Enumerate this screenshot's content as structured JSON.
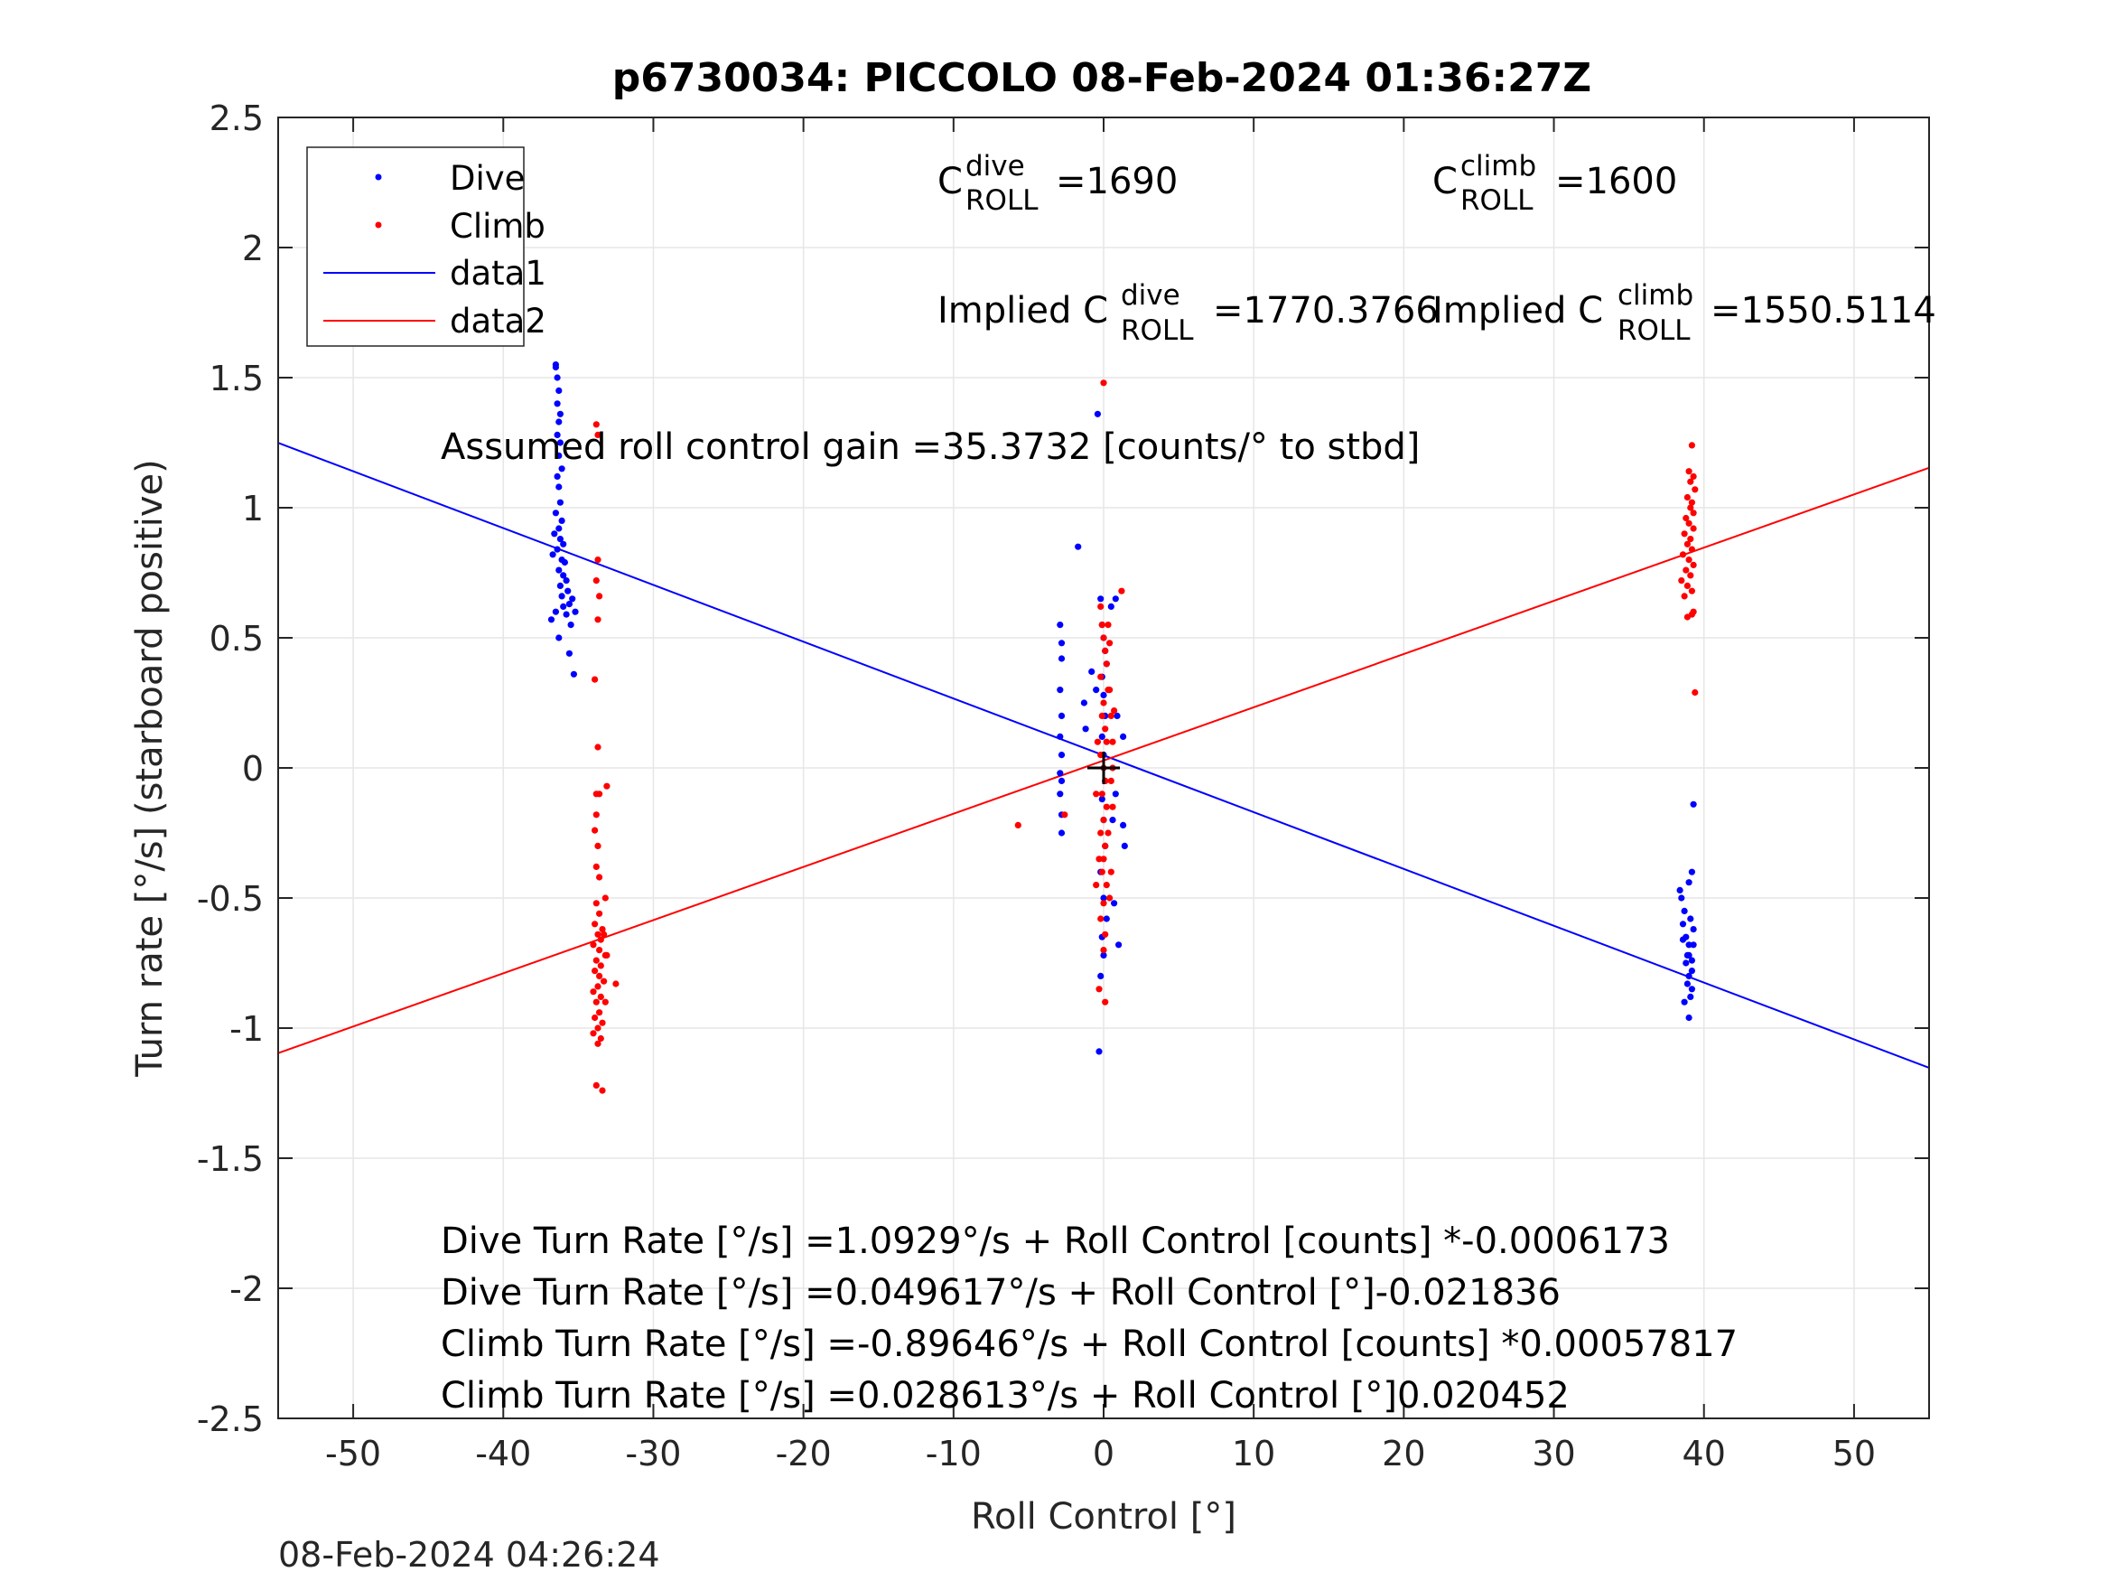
{
  "chart_data": {
    "type": "scatter",
    "title": "p6730034: PICCOLO 08-Feb-2024 01:36:27Z",
    "xlabel": "Roll Control [°]",
    "ylabel": "Turn rate [°/s] (starboard positive)",
    "xlim": [
      -55,
      55
    ],
    "ylim": [
      -2.5,
      2.5
    ],
    "xticks": [
      -50,
      -40,
      -30,
      -20,
      -10,
      0,
      10,
      20,
      30,
      40,
      50
    ],
    "yticks": [
      -2.5,
      -2,
      -1.5,
      -1,
      -0.5,
      0,
      0.5,
      1,
      1.5,
      2,
      2.5
    ],
    "grid": true,
    "legend_position": "top-left",
    "legend": [
      "Dive",
      "Climb",
      "data1",
      "data2"
    ],
    "colors": {
      "dive": "#0000ff",
      "climb": "#ff0000",
      "axes": "#262626",
      "grid": "#e6e6e6",
      "crosshair": "#000000"
    },
    "series": [
      {
        "name": "Dive",
        "kind": "points",
        "color": "#0000ff",
        "points": [
          [
            -36.5,
            1.55
          ],
          [
            -36.5,
            1.54
          ],
          [
            -36.4,
            1.5
          ],
          [
            -36.3,
            1.45
          ],
          [
            -36.4,
            1.4
          ],
          [
            -36.2,
            1.36
          ],
          [
            -36.3,
            1.33
          ],
          [
            -36.4,
            1.28
          ],
          [
            -36.2,
            1.25
          ],
          [
            -36.3,
            1.2
          ],
          [
            -36.1,
            1.15
          ],
          [
            -36.4,
            1.12
          ],
          [
            -36.3,
            1.08
          ],
          [
            -36.2,
            1.02
          ],
          [
            -36.5,
            0.98
          ],
          [
            -36.1,
            0.95
          ],
          [
            -36.3,
            0.92
          ],
          [
            -36.6,
            0.9
          ],
          [
            -36.2,
            0.88
          ],
          [
            -36.0,
            0.86
          ],
          [
            -36.4,
            0.84
          ],
          [
            -36.7,
            0.82
          ],
          [
            -36.1,
            0.8
          ],
          [
            -35.9,
            0.79
          ],
          [
            -36.3,
            0.76
          ],
          [
            -36.0,
            0.74
          ],
          [
            -35.8,
            0.72
          ],
          [
            -36.2,
            0.7
          ],
          [
            -35.7,
            0.68
          ],
          [
            -36.1,
            0.66
          ],
          [
            -35.4,
            0.65
          ],
          [
            -35.6,
            0.63
          ],
          [
            -36.0,
            0.62
          ],
          [
            -36.5,
            0.6
          ],
          [
            -35.2,
            0.6
          ],
          [
            -35.8,
            0.59
          ],
          [
            -36.8,
            0.57
          ],
          [
            -35.5,
            0.55
          ],
          [
            -36.3,
            0.5
          ],
          [
            -35.6,
            0.44
          ],
          [
            -35.3,
            0.36
          ],
          [
            -2.9,
            0.55
          ],
          [
            -2.8,
            0.48
          ],
          [
            -2.8,
            0.42
          ],
          [
            -2.9,
            0.3
          ],
          [
            -2.8,
            0.2
          ],
          [
            -2.9,
            0.12
          ],
          [
            -2.8,
            0.05
          ],
          [
            -2.9,
            -0.02
          ],
          [
            -2.8,
            -0.05
          ],
          [
            -2.9,
            -0.1
          ],
          [
            -2.8,
            -0.18
          ],
          [
            -2.8,
            -0.25
          ],
          [
            -1.7,
            0.85
          ],
          [
            -1.3,
            0.25
          ],
          [
            -1.2,
            0.15
          ],
          [
            -0.8,
            0.37
          ],
          [
            -0.5,
            0.3
          ],
          [
            -0.4,
            1.36
          ],
          [
            -0.2,
            0.65
          ],
          [
            -0.1,
            0.55
          ],
          [
            0.0,
            0.5
          ],
          [
            0.1,
            0.45
          ],
          [
            0.2,
            0.4
          ],
          [
            -0.1,
            0.35
          ],
          [
            0.0,
            0.28
          ],
          [
            0.1,
            0.2
          ],
          [
            -0.1,
            0.12
          ],
          [
            0.0,
            0.05
          ],
          [
            0.1,
            -0.05
          ],
          [
            -0.1,
            -0.12
          ],
          [
            0.0,
            -0.2
          ],
          [
            0.1,
            -0.3
          ],
          [
            -0.2,
            -0.4
          ],
          [
            0.0,
            -0.5
          ],
          [
            0.2,
            -0.58
          ],
          [
            -0.1,
            -0.65
          ],
          [
            0.0,
            -0.72
          ],
          [
            -0.2,
            -0.8
          ],
          [
            -0.3,
            -1.09
          ],
          [
            0.8,
            0.65
          ],
          [
            0.8,
            -0.1
          ],
          [
            1.0,
            -0.68
          ],
          [
            0.7,
            -0.52
          ],
          [
            0.5,
            0.62
          ],
          [
            1.3,
            0.12
          ],
          [
            1.4,
            -0.3
          ],
          [
            1.3,
            -0.22
          ],
          [
            0.9,
            0.2
          ],
          [
            0.6,
            -0.2
          ],
          [
            38.4,
            -0.47
          ],
          [
            38.5,
            -0.5
          ],
          [
            38.7,
            -0.55
          ],
          [
            38.6,
            -0.6
          ],
          [
            39.2,
            -0.4
          ],
          [
            39.0,
            -0.44
          ],
          [
            39.1,
            -0.58
          ],
          [
            38.8,
            -0.65
          ],
          [
            39.3,
            -0.68
          ],
          [
            39.0,
            -0.72
          ],
          [
            38.8,
            -0.75
          ],
          [
            39.2,
            -0.78
          ],
          [
            39.0,
            -0.8
          ],
          [
            38.9,
            -0.83
          ],
          [
            39.2,
            -0.85
          ],
          [
            39.1,
            -0.88
          ],
          [
            38.9,
            -0.72
          ],
          [
            39.3,
            -0.62
          ],
          [
            38.7,
            -0.9
          ],
          [
            39.0,
            -0.96
          ],
          [
            39.3,
            -0.14
          ],
          [
            38.6,
            -0.66
          ],
          [
            39.2,
            -0.74
          ],
          [
            39.0,
            -0.68
          ]
        ]
      },
      {
        "name": "Climb",
        "kind": "points",
        "color": "#ff0000",
        "points": [
          [
            -33.8,
            1.32
          ],
          [
            -33.7,
            1.28
          ],
          [
            -33.7,
            0.8
          ],
          [
            -33.8,
            0.72
          ],
          [
            -33.6,
            0.66
          ],
          [
            -33.7,
            0.57
          ],
          [
            -33.9,
            0.34
          ],
          [
            -33.7,
            0.08
          ],
          [
            -33.8,
            -0.1
          ],
          [
            -33.6,
            -0.1
          ],
          [
            -33.1,
            -0.07
          ],
          [
            -33.8,
            -0.18
          ],
          [
            -33.9,
            -0.24
          ],
          [
            -33.7,
            -0.3
          ],
          [
            -33.8,
            -0.38
          ],
          [
            -33.6,
            -0.42
          ],
          [
            -33.2,
            -0.5
          ],
          [
            -33.8,
            -0.52
          ],
          [
            -33.6,
            -0.56
          ],
          [
            -33.9,
            -0.6
          ],
          [
            -33.4,
            -0.62
          ],
          [
            -33.7,
            -0.64
          ],
          [
            -33.5,
            -0.66
          ],
          [
            -34.0,
            -0.68
          ],
          [
            -33.6,
            -0.7
          ],
          [
            -33.2,
            -0.72
          ],
          [
            -33.8,
            -0.74
          ],
          [
            -33.5,
            -0.76
          ],
          [
            -33.9,
            -0.78
          ],
          [
            -33.6,
            -0.8
          ],
          [
            -33.3,
            -0.82
          ],
          [
            -33.7,
            -0.84
          ],
          [
            -34.0,
            -0.86
          ],
          [
            -33.5,
            -0.88
          ],
          [
            -33.8,
            -0.9
          ],
          [
            -32.5,
            -0.83
          ],
          [
            -33.6,
            -0.94
          ],
          [
            -33.9,
            -0.96
          ],
          [
            -33.4,
            -0.98
          ],
          [
            -33.7,
            -1.0
          ],
          [
            -34.0,
            -1.02
          ],
          [
            -33.5,
            -1.04
          ],
          [
            -33.2,
            -0.9
          ],
          [
            -33.1,
            -0.72
          ],
          [
            -33.3,
            -0.64
          ],
          [
            -33.8,
            -1.22
          ],
          [
            -33.4,
            -1.24
          ],
          [
            -33.7,
            -1.06
          ],
          [
            -5.7,
            -0.22
          ],
          [
            -2.6,
            -0.18
          ],
          [
            -0.5,
            -0.45
          ],
          [
            -0.3,
            -0.85
          ],
          [
            0.0,
            1.48
          ],
          [
            0.1,
            -0.9
          ],
          [
            1.2,
            0.68
          ],
          [
            0.4,
            -0.5
          ],
          [
            -0.2,
            0.62
          ],
          [
            -0.1,
            0.55
          ],
          [
            0.0,
            0.5
          ],
          [
            0.1,
            0.45
          ],
          [
            0.2,
            0.4
          ],
          [
            -0.2,
            0.35
          ],
          [
            0.3,
            0.3
          ],
          [
            0.0,
            0.25
          ],
          [
            -0.1,
            0.2
          ],
          [
            0.1,
            0.15
          ],
          [
            0.2,
            0.1
          ],
          [
            -0.2,
            0.05
          ],
          [
            0.0,
            0.0
          ],
          [
            0.1,
            -0.05
          ],
          [
            -0.1,
            -0.1
          ],
          [
            0.2,
            -0.15
          ],
          [
            0.0,
            -0.2
          ],
          [
            -0.2,
            -0.25
          ],
          [
            0.1,
            -0.3
          ],
          [
            0.0,
            -0.35
          ],
          [
            -0.1,
            -0.4
          ],
          [
            0.2,
            -0.45
          ],
          [
            0.0,
            -0.52
          ],
          [
            -0.2,
            -0.58
          ],
          [
            0.1,
            -0.64
          ],
          [
            0.0,
            -0.7
          ],
          [
            0.5,
            0.2
          ],
          [
            0.6,
            0.1
          ],
          [
            0.5,
            -0.05
          ],
          [
            0.6,
            -0.15
          ],
          [
            0.4,
            0.3
          ],
          [
            0.7,
            0.22
          ],
          [
            0.3,
            -0.25
          ],
          [
            0.6,
            0.0
          ],
          [
            -0.4,
            0.1
          ],
          [
            -0.5,
            -0.1
          ],
          [
            0.4,
            0.48
          ],
          [
            0.3,
            0.55
          ],
          [
            -0.3,
            -0.35
          ],
          [
            0.5,
            -0.4
          ],
          [
            39.2,
            1.24
          ],
          [
            39.0,
            1.14
          ],
          [
            39.3,
            1.12
          ],
          [
            39.1,
            1.1
          ],
          [
            39.4,
            1.07
          ],
          [
            38.9,
            1.04
          ],
          [
            39.2,
            1.02
          ],
          [
            39.1,
            1.0
          ],
          [
            39.3,
            0.98
          ],
          [
            38.8,
            0.96
          ],
          [
            39.0,
            0.94
          ],
          [
            39.3,
            0.92
          ],
          [
            38.7,
            0.9
          ],
          [
            39.1,
            0.88
          ],
          [
            38.9,
            0.86
          ],
          [
            39.2,
            0.84
          ],
          [
            38.6,
            0.82
          ],
          [
            39.0,
            0.8
          ],
          [
            39.3,
            0.78
          ],
          [
            38.8,
            0.76
          ],
          [
            39.1,
            0.74
          ],
          [
            38.5,
            0.72
          ],
          [
            38.9,
            0.7
          ],
          [
            39.2,
            0.68
          ],
          [
            38.7,
            0.66
          ],
          [
            39.3,
            0.6
          ],
          [
            38.9,
            0.58
          ],
          [
            39.2,
            0.59
          ],
          [
            39.4,
            0.29
          ]
        ]
      },
      {
        "name": "data1",
        "kind": "line",
        "color": "#0000ff",
        "x": [
          -55,
          55
        ],
        "y": [
          1.2492,
          -1.1526
        ]
      },
      {
        "name": "data2",
        "kind": "line",
        "color": "#ff0000",
        "x": [
          -55,
          55
        ],
        "y": [
          -1.0962,
          1.1533
        ]
      }
    ],
    "crosshair": [
      0,
      0
    ],
    "annotations": {
      "c_dive_base": "C",
      "c_dive_sup": "dive",
      "c_dive_sub": "ROLL",
      "c_dive_value": "=1690",
      "c_climb_base": "C",
      "c_climb_sup": "climb",
      "c_climb_sub": "ROLL",
      "c_climb_value": "=1600",
      "implied_dive_prefix": "Implied C",
      "implied_dive_sup": "dive",
      "implied_dive_sub": "ROLL",
      "implied_dive_value": "=1770.3766",
      "implied_climb_prefix": "Implied C",
      "implied_climb_sup": "climb",
      "implied_climb_sub": "ROLL",
      "implied_climb_value": "=1550.5114",
      "gain_text": "Assumed roll control gain =35.3732 [counts/° to stbd]",
      "eq_lines": [
        "Dive Turn Rate [°/s] =1.0929°/s + Roll Control [counts] *-0.0006173",
        "Dive Turn Rate [°/s] =0.049617°/s + Roll Control [°]-0.021836",
        "Climb Turn Rate [°/s] =-0.89646°/s + Roll Control [counts] *0.00057817",
        "Climb Turn Rate [°/s] =0.028613°/s + Roll Control [°]0.020452"
      ]
    },
    "footer_timestamp": "08-Feb-2024 04:26:24"
  }
}
